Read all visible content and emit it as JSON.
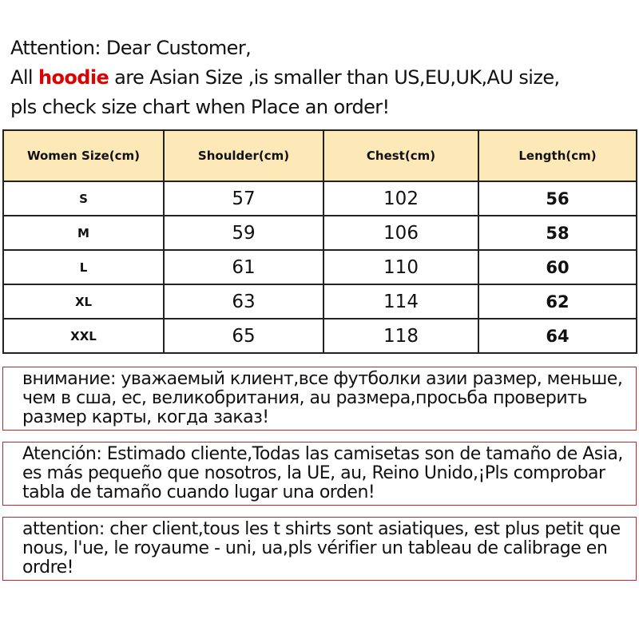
{
  "intro": {
    "line1": "Attention: Dear Customer,",
    "line2_pre": "All ",
    "line2_highlight": "hoodie",
    "line2_post": " are  Asian Size ,is smaller than US,EU,UK,AU size,",
    "line3": "pls check size chart when Place an order!",
    "highlight_color": "#e00000"
  },
  "table": {
    "headers": [
      "Women Size(cm)",
      "Shoulder(cm)",
      "Chest(cm)",
      "Length(cm)"
    ],
    "header_bg": "#fde9b8",
    "rows": [
      [
        "S",
        "57",
        "102",
        "56"
      ],
      [
        "M",
        "59",
        "106",
        "58"
      ],
      [
        "L",
        "61",
        "110",
        "60"
      ],
      [
        "XL",
        "63",
        "114",
        "62"
      ],
      [
        "XXL",
        "65",
        "118",
        "64"
      ]
    ]
  },
  "notices": [
    "внимание: уважаемый клиент,все футболки азии размер, меньше, чем в сша, ес, великобритания, au размера,просьба проверить размер карты, когда заказ!",
    "Atención: Estimado cliente,Todas las camisetas son de tamaño de Asia, es más pequeño que nosotros, la UE, au, Reino Unido,¡Pls comprobar tabla de tamaño cuando lugar una orden!",
    "attention: cher client,tous les t shirts sont asiatiques, est plus petit que nous, l'ue, le royaume - uni, ua,pls vérifier un tableau de calibrage en ordre!"
  ],
  "notice_border_color": "#c0262b"
}
